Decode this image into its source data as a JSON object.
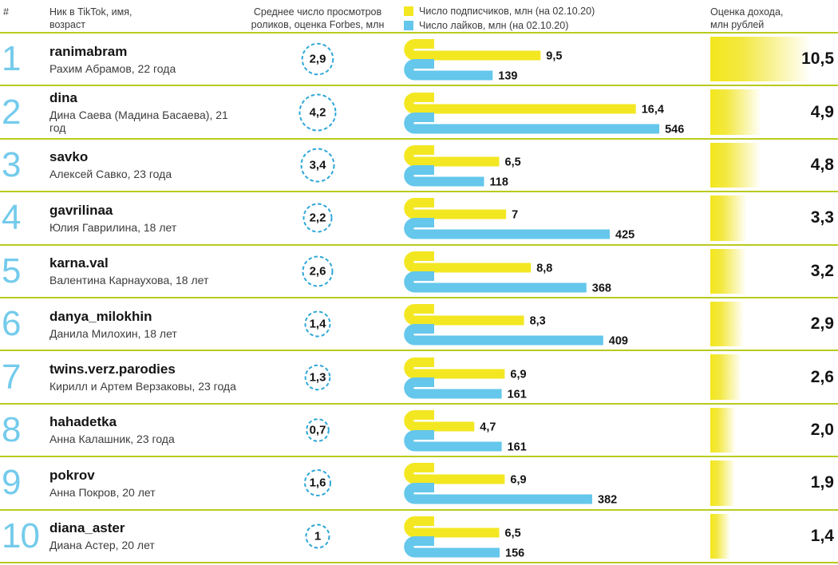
{
  "header": {
    "col_rank": "#",
    "col_name": "Ник в TikTok, имя,\nвозраст",
    "col_views": "Среднее число просмотров\nроликов, оценка Forbes, млн",
    "col_income": "Оценка дохода,\nмлн рублей",
    "legend": [
      {
        "label": "Число подписчиков, млн (на 02.10.20)",
        "color": "#f3e722"
      },
      {
        "label": "Число лайков, млн (на 02.10.20)",
        "color": "#64c7eb"
      }
    ]
  },
  "colors": {
    "subscribers_yellow": "#f3e722",
    "likes_blue": "#64c7eb",
    "divider_green": "#b8cb1d",
    "rank_blue": "#74cbec",
    "views_circle_blue": "#2fa7d8",
    "income_gradient_yellow": "#f3e71d",
    "text_dark": "#141414"
  },
  "chart_data": {
    "type": "bar",
    "legend_position": "top",
    "series_names": [
      "Число подписчиков, млн (на 02.10.20)",
      "Число лайков, млн (на 02.10.20)"
    ],
    "value_columns": {
      "views": "Среднее число просмотров роликов, оценка Forbes, млн",
      "income": "Оценка дохода, млн рублей"
    },
    "rows": [
      {
        "rank": "1",
        "nickname": "ranimabram",
        "person": "Рахим Абрамов, 22 года",
        "views": 2.9,
        "views_label": "2,9",
        "subscribers": 9.5,
        "subscribers_label": "9,5",
        "likes": 139,
        "likes_label": "139",
        "income": 10.5,
        "income_label": "10,5"
      },
      {
        "rank": "2",
        "nickname": "dina",
        "person": "Дина Саева (Мадина Басаева), 21 год",
        "views": 4.2,
        "views_label": "4,2",
        "subscribers": 16.4,
        "subscribers_label": "16,4",
        "likes": 546,
        "likes_label": "546",
        "income": 4.9,
        "income_label": "4,9"
      },
      {
        "rank": "3",
        "nickname": "savko",
        "person": "Алексей Савко, 23 года",
        "views": 3.4,
        "views_label": "3,4",
        "subscribers": 6.5,
        "subscribers_label": "6,5",
        "likes": 118,
        "likes_label": "118",
        "income": 4.8,
        "income_label": "4,8"
      },
      {
        "rank": "4",
        "nickname": "gavrilinaa",
        "person": "Юлия Гаврилина, 18 лет",
        "views": 2.2,
        "views_label": "2,2",
        "subscribers": 7,
        "subscribers_label": "7",
        "likes": 425,
        "likes_label": "425",
        "income": 3.3,
        "income_label": "3,3"
      },
      {
        "rank": "5",
        "nickname": "karna.val",
        "person": "Валентина Карнаухова, 18 лет",
        "views": 2.6,
        "views_label": "2,6",
        "subscribers": 8.8,
        "subscribers_label": "8,8",
        "likes": 368,
        "likes_label": "368",
        "income": 3.2,
        "income_label": "3,2"
      },
      {
        "rank": "6",
        "nickname": "danya_milokhin",
        "person": "Данила Милохин, 18 лет",
        "views": 1.4,
        "views_label": "1,4",
        "subscribers": 8.3,
        "subscribers_label": "8,3",
        "likes": 409,
        "likes_label": "409",
        "income": 2.9,
        "income_label": "2,9"
      },
      {
        "rank": "7",
        "nickname": "twins.verz.parodies",
        "person": "Кирилл и Артем Верзаковы, 23 года",
        "views": 1.3,
        "views_label": "1,3",
        "subscribers": 6.9,
        "subscribers_label": "6,9",
        "likes": 161,
        "likes_label": "161",
        "income": 2.6,
        "income_label": "2,6"
      },
      {
        "rank": "8",
        "nickname": "hahadetka",
        "person": "Анна Калашник, 23 года",
        "views": 0.7,
        "views_label": "0,7",
        "subscribers": 4.7,
        "subscribers_label": "4,7",
        "likes": 161,
        "likes_label": "161",
        "income": 2.0,
        "income_label": "2,0"
      },
      {
        "rank": "9",
        "nickname": "pokrov",
        "person": "Анна Покров, 20 лет",
        "views": 1.6,
        "views_label": "1,6",
        "subscribers": 6.9,
        "subscribers_label": "6,9",
        "likes": 382,
        "likes_label": "382",
        "income": 1.9,
        "income_label": "1,9"
      },
      {
        "rank": "10",
        "nickname": "diana_aster",
        "person": "Диана Астер, 20 лет",
        "views": 1,
        "views_label": "1",
        "subscribers": 6.5,
        "subscribers_label": "6,5",
        "likes": 156,
        "likes_label": "156",
        "income": 1.4,
        "income_label": "1,4"
      }
    ]
  }
}
